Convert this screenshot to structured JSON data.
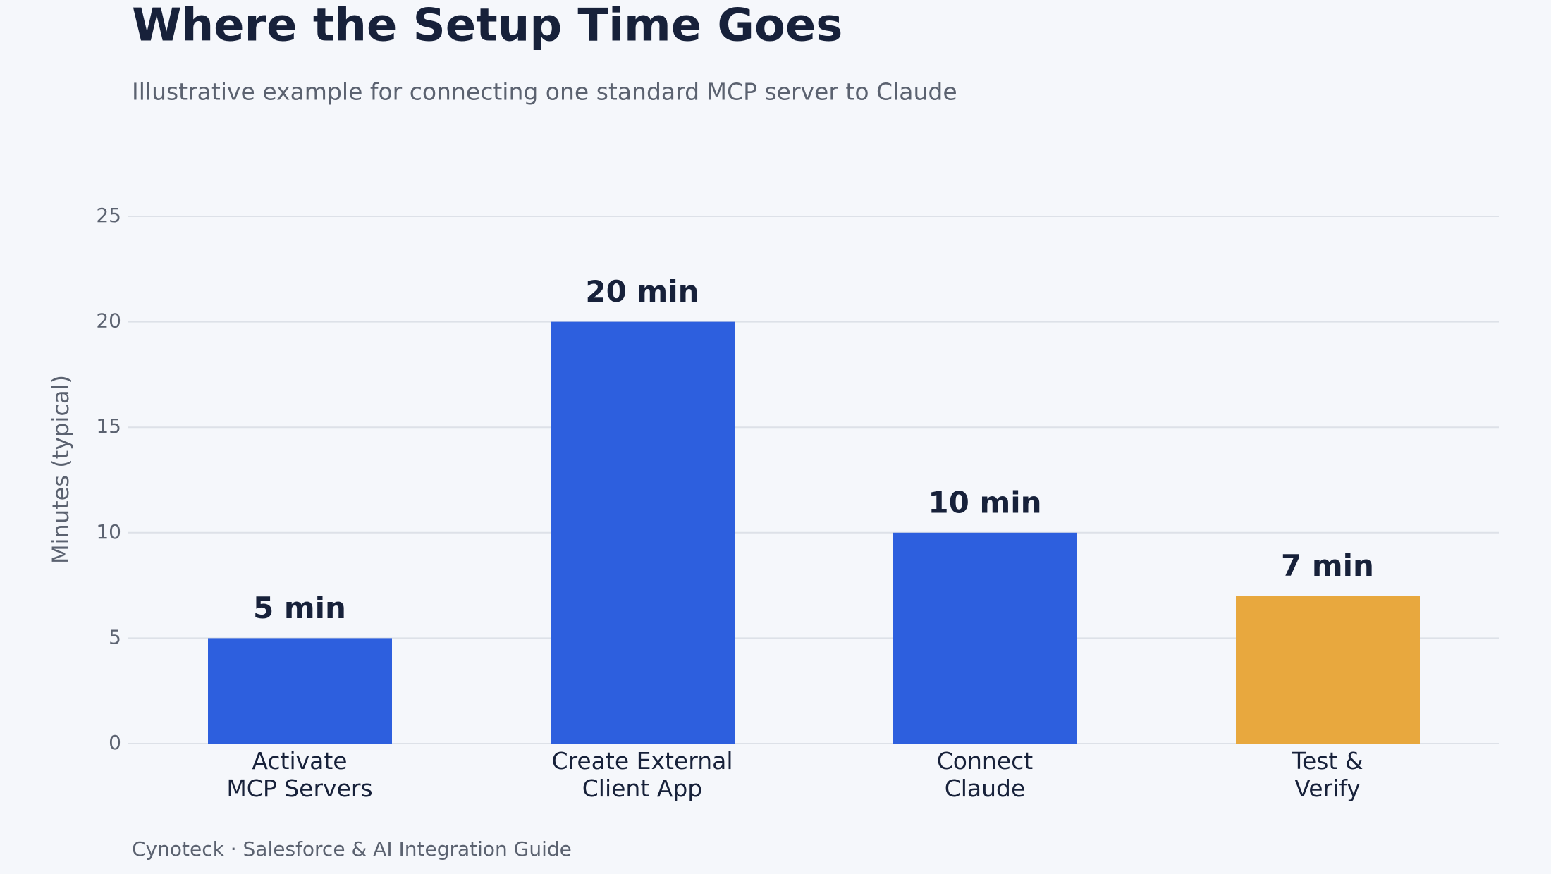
{
  "chart_data": {
    "type": "bar",
    "title": "Where the Setup Time Goes",
    "subtitle": "Illustrative example for connecting one standard MCP server to Claude",
    "y_label": "Minutes (typical)",
    "categories": [
      "Activate\nMCP Servers",
      "Create External\nClient App",
      "Connect\nClaude",
      "Test &\nVerify"
    ],
    "values": [
      5,
      20,
      10,
      7
    ],
    "value_labels": [
      "5 min",
      "20 min",
      "10 min",
      "7 min"
    ],
    "colors": [
      "#2d5fde",
      "#2d5fde",
      "#2d5fde",
      "#e8a83e"
    ],
    "ylim": [
      0,
      25
    ],
    "yticks": [
      0,
      5,
      10,
      15,
      20,
      25
    ],
    "grid": true,
    "source": "Cynoteck  ·  Salesforce & AI Integration Guide"
  }
}
